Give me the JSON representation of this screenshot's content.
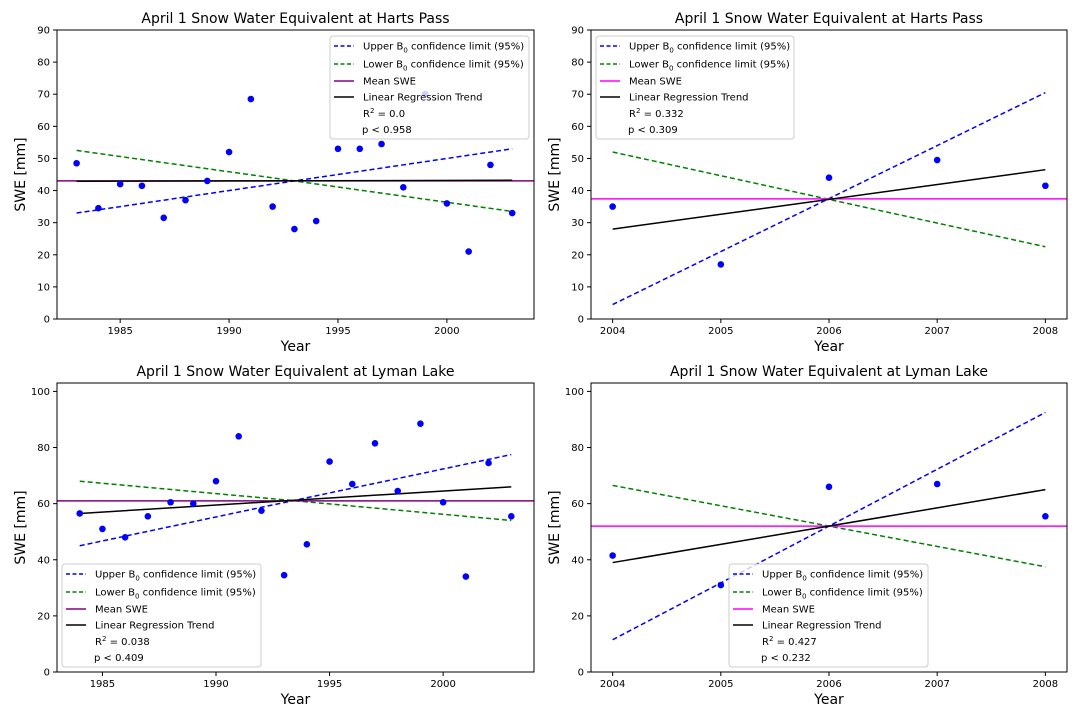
{
  "chart_data": [
    {
      "type": "scatter",
      "title": "April 1 Snow Water Equivalent at Harts Pass",
      "xlabel": "Year",
      "ylabel": "SWE [mm]",
      "xlim": [
        1982.1,
        2004.0
      ],
      "ylim": [
        0,
        90
      ],
      "xticks": [
        1985,
        1990,
        1995,
        2000
      ],
      "yticks": [
        0,
        10,
        20,
        30,
        40,
        50,
        60,
        70,
        80,
        90
      ],
      "legend_position": "top-right",
      "colors": {
        "points": "#0000ff",
        "upper": "#0000ff",
        "lower": "#008000",
        "mean": "#800080",
        "trend": "#000000"
      },
      "points": {
        "x": [
          1983,
          1984,
          1985,
          1986,
          1987,
          1988,
          1989,
          1990,
          1991,
          1992,
          1993,
          1994,
          1995,
          1996,
          1997,
          1998,
          1999,
          2000,
          2001,
          2002,
          2003
        ],
        "y": [
          48.5,
          34.5,
          42,
          41.5,
          31.5,
          37,
          43,
          52,
          68.5,
          35,
          28,
          30.5,
          53,
          53,
          54.5,
          41,
          70,
          36,
          21,
          48,
          33
        ]
      },
      "series": [
        {
          "name": "Upper B0 confidence limit (95%)",
          "style": "dashed",
          "x": [
            1983,
            2003
          ],
          "y": [
            33,
            53
          ]
        },
        {
          "name": "Lower B0 confidence limit (95%)",
          "style": "dashed",
          "x": [
            1983,
            2003
          ],
          "y": [
            52.5,
            33.5
          ]
        },
        {
          "name": "Mean SWE",
          "style": "solid",
          "hline": 43
        },
        {
          "name": "Linear Regression Trend",
          "style": "solid",
          "x": [
            1983,
            2003
          ],
          "y": [
            42.9,
            43.2
          ]
        }
      ],
      "r2_prefix": "R",
      "r2_value": " = 0.0",
      "p_text": "p < 0.958"
    },
    {
      "type": "scatter",
      "title": "April 1 Snow Water Equivalent at Harts Pass",
      "xlabel": "Year",
      "ylabel": "SWE [mm]",
      "xlim": [
        2003.8,
        2008.2
      ],
      "ylim": [
        0,
        90
      ],
      "xticks": [
        2004,
        2005,
        2006,
        2007,
        2008
      ],
      "yticks": [
        0,
        10,
        20,
        30,
        40,
        50,
        60,
        70,
        80,
        90
      ],
      "legend_position": "top-left",
      "colors": {
        "points": "#0000ff",
        "upper": "#0000ff",
        "lower": "#008000",
        "mean": "#ff00ff",
        "trend": "#000000"
      },
      "points": {
        "x": [
          2004,
          2005,
          2006,
          2007,
          2008
        ],
        "y": [
          35,
          17,
          44,
          49.5,
          41.5
        ]
      },
      "series": [
        {
          "name": "Upper B0 confidence limit (95%)",
          "style": "dashed",
          "x": [
            2004,
            2008
          ],
          "y": [
            4.5,
            70.5
          ]
        },
        {
          "name": "Lower B0 confidence limit (95%)",
          "style": "dashed",
          "x": [
            2004,
            2008
          ],
          "y": [
            52,
            22.5
          ]
        },
        {
          "name": "Mean SWE",
          "style": "solid",
          "hline": 37.4
        },
        {
          "name": "Linear Regression Trend",
          "style": "solid",
          "x": [
            2004,
            2008
          ],
          "y": [
            28,
            46.5
          ]
        }
      ],
      "r2_prefix": "R",
      "r2_value": " = 0.332",
      "p_text": "p < 0.309"
    },
    {
      "type": "scatter",
      "title": "April 1 Snow Water Equivalent at Lyman Lake",
      "xlabel": "Year",
      "ylabel": "SWE [mm]",
      "xlim": [
        1983.0,
        2004.0
      ],
      "ylim": [
        0,
        103
      ],
      "xticks": [
        1985,
        1990,
        1995,
        2000
      ],
      "yticks": [
        0,
        20,
        40,
        60,
        80,
        100
      ],
      "legend_position": "bottom-left",
      "colors": {
        "points": "#0000ff",
        "upper": "#0000ff",
        "lower": "#008000",
        "mean": "#800080",
        "trend": "#000000"
      },
      "points": {
        "x": [
          1984,
          1985,
          1986,
          1987,
          1988,
          1989,
          1990,
          1991,
          1992,
          1993,
          1994,
          1995,
          1996,
          1997,
          1998,
          1999,
          2000,
          2001,
          2002,
          2003
        ],
        "y": [
          56.5,
          51,
          48,
          55.5,
          60.5,
          60,
          68,
          84,
          57.5,
          34.5,
          45.5,
          75,
          67,
          81.5,
          64.5,
          88.5,
          60.5,
          34,
          74.5,
          55.5
        ]
      },
      "series": [
        {
          "name": "Upper B0 confidence limit (95%)",
          "style": "dashed",
          "x": [
            1984,
            2003
          ],
          "y": [
            45,
            77.5
          ]
        },
        {
          "name": "Lower B0 confidence limit (95%)",
          "style": "dashed",
          "x": [
            1984,
            2003
          ],
          "y": [
            68,
            54
          ]
        },
        {
          "name": "Mean SWE",
          "style": "solid",
          "hline": 61
        },
        {
          "name": "Linear Regression Trend",
          "style": "solid",
          "x": [
            1984,
            2003
          ],
          "y": [
            56.5,
            66
          ]
        }
      ],
      "r2_prefix": "R",
      "r2_value": " = 0.038",
      "p_text": "p < 0.409"
    },
    {
      "type": "scatter",
      "title": "April 1 Snow Water Equivalent at Lyman Lake",
      "xlabel": "Year",
      "ylabel": "SWE [mm]",
      "xlim": [
        2003.8,
        2008.2
      ],
      "ylim": [
        0,
        103
      ],
      "xticks": [
        2004,
        2005,
        2006,
        2007,
        2008
      ],
      "yticks": [
        0,
        20,
        40,
        60,
        80,
        100
      ],
      "legend_position": "bottom-center",
      "colors": {
        "points": "#0000ff",
        "upper": "#0000ff",
        "lower": "#008000",
        "mean": "#ff00ff",
        "trend": "#000000"
      },
      "points": {
        "x": [
          2004,
          2005,
          2006,
          2007,
          2008
        ],
        "y": [
          41.5,
          31,
          66,
          67,
          55.5
        ]
      },
      "series": [
        {
          "name": "Upper B0 confidence limit (95%)",
          "style": "dashed",
          "x": [
            2004,
            2008
          ],
          "y": [
            11.5,
            92.5
          ]
        },
        {
          "name": "Lower B0 confidence limit (95%)",
          "style": "dashed",
          "x": [
            2004,
            2008
          ],
          "y": [
            66.5,
            37.5
          ]
        },
        {
          "name": "Mean SWE",
          "style": "solid",
          "hline": 52
        },
        {
          "name": "Linear Regression Trend",
          "style": "solid",
          "x": [
            2004,
            2008
          ],
          "y": [
            39,
            65
          ]
        }
      ],
      "r2_prefix": "R",
      "r2_value": " = 0.427",
      "p_text": "p < 0.232"
    }
  ]
}
